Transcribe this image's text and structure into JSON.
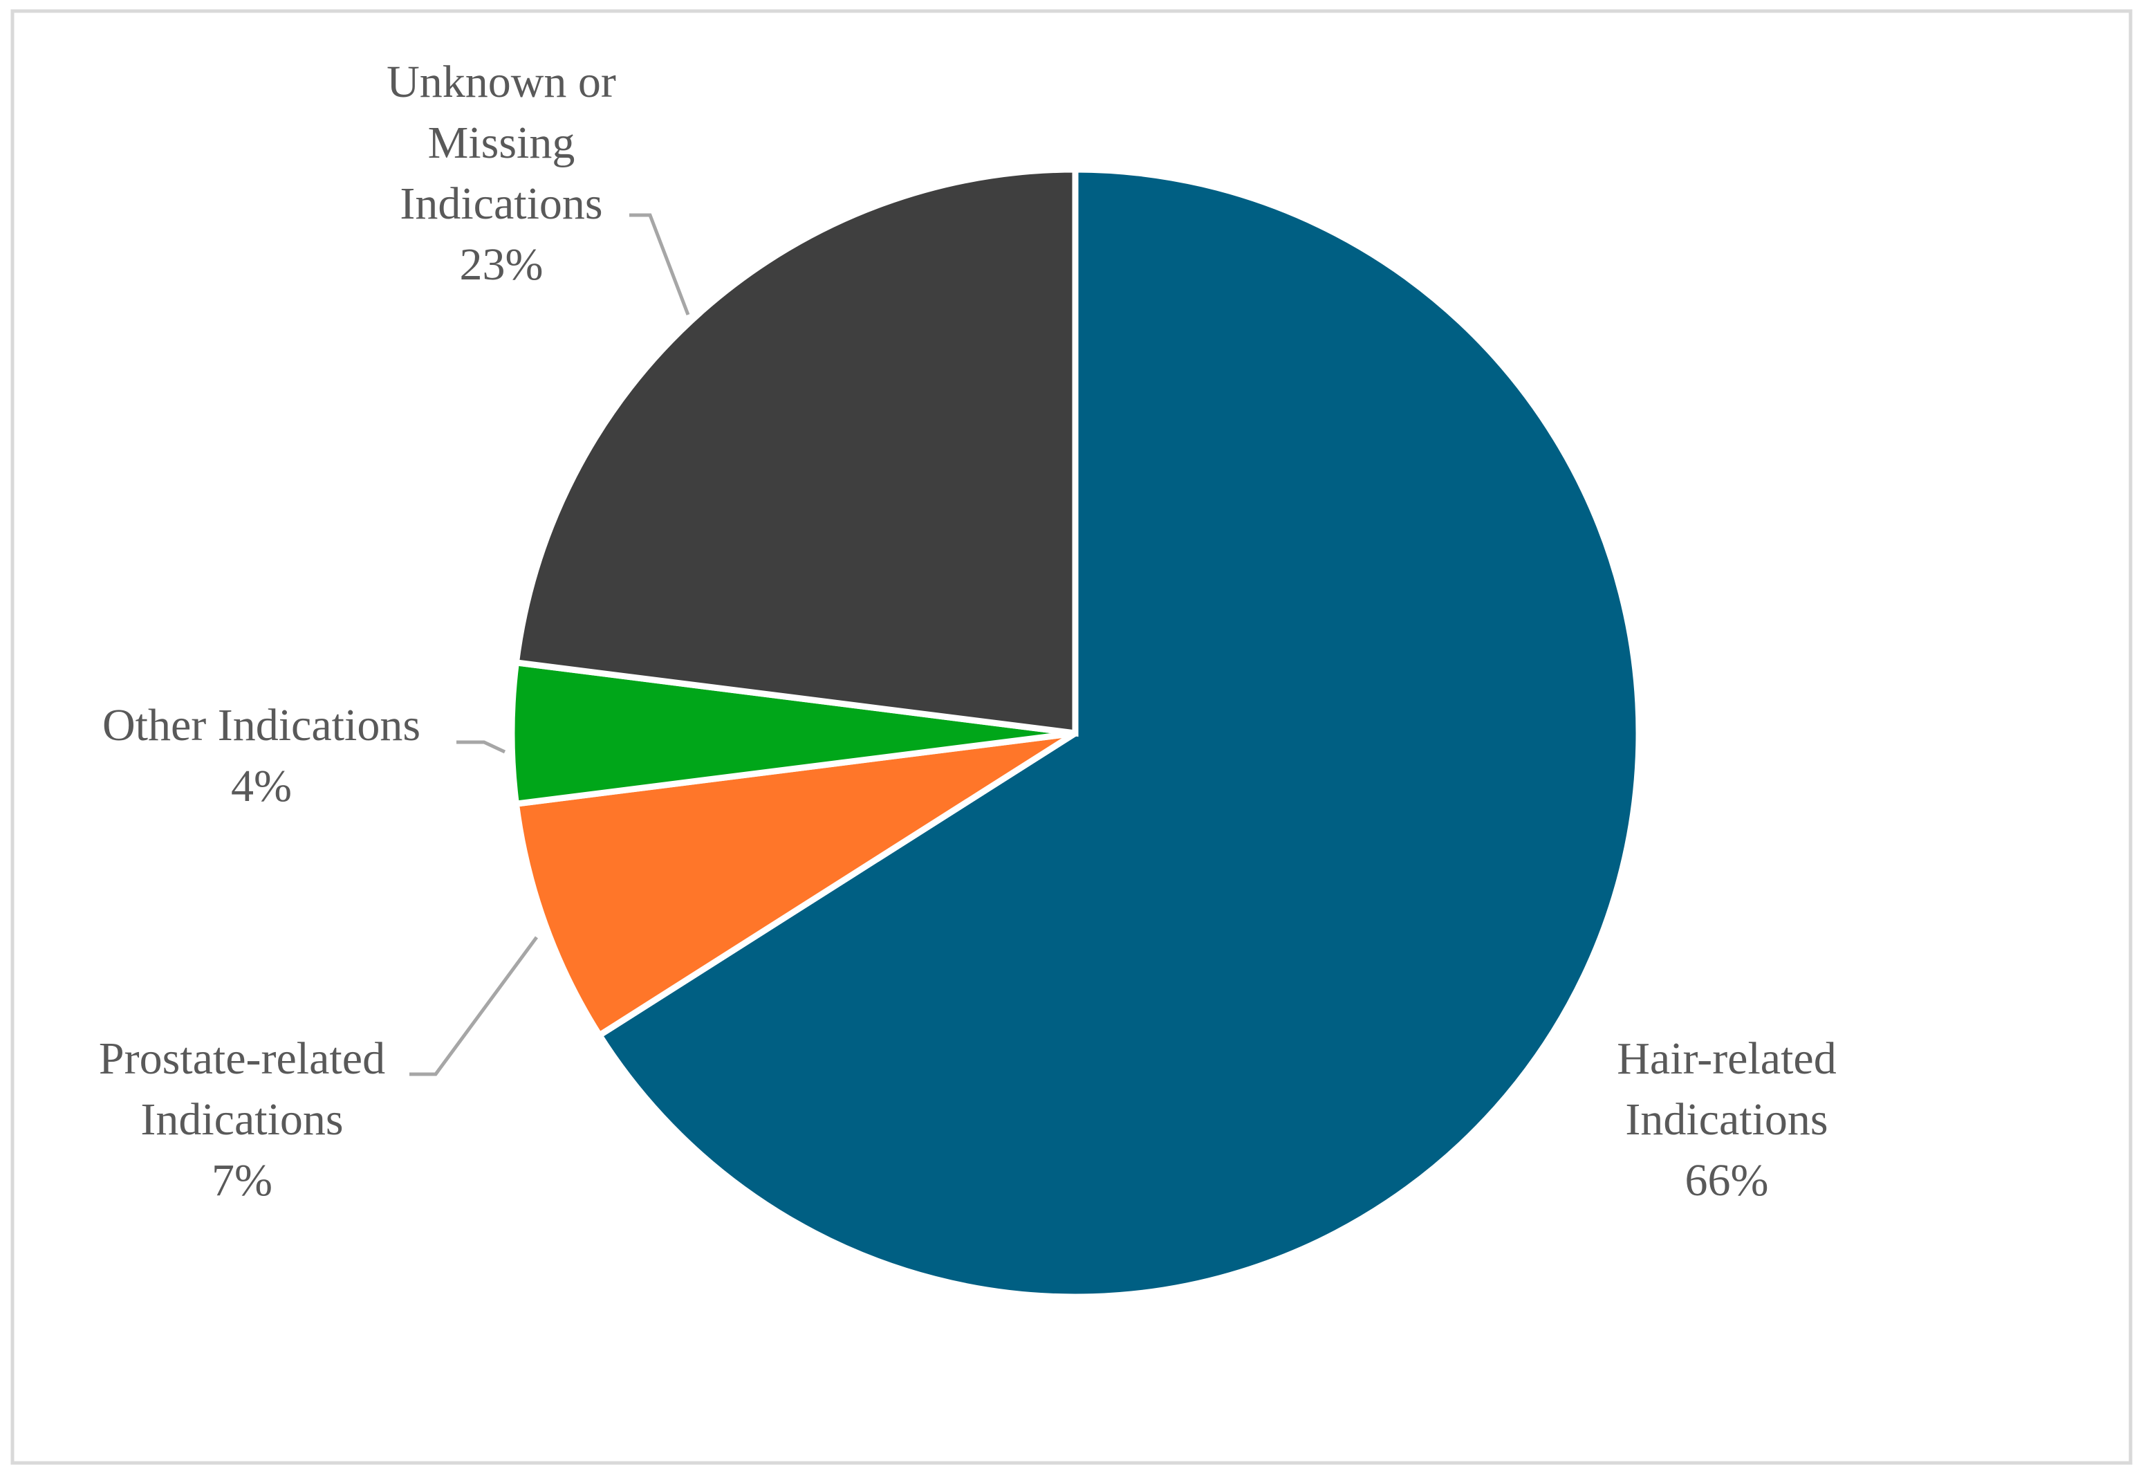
{
  "chart_data": {
    "type": "pie",
    "title": "",
    "start_angle_deg": 0,
    "direction": "clockwise",
    "slices": [
      {
        "name": "Hair-related Indications",
        "label_lines": [
          "Hair-related",
          "Indications"
        ],
        "percent_label": "66%",
        "value": 66,
        "color": "#005f83"
      },
      {
        "name": "Prostate-related Indications",
        "label_lines": [
          "Prostate-related",
          "Indications"
        ],
        "percent_label": "7%",
        "value": 7,
        "color": "#ff7629"
      },
      {
        "name": "Other Indications",
        "label_lines": [
          "Other Indications"
        ],
        "percent_label": "4%",
        "value": 4,
        "color": "#00a619"
      },
      {
        "name": "Unknown or Missing Indications",
        "label_lines": [
          "Unknown or",
          "Missing",
          "Indications"
        ],
        "percent_label": "23%",
        "value": 23,
        "color": "#3f3f3f"
      }
    ],
    "legend": "none",
    "slice_border_color": "#ffffff",
    "frame_color": "#d9d9d9",
    "label_color": "#595959",
    "leader_line_color": "#a6a6a6"
  }
}
